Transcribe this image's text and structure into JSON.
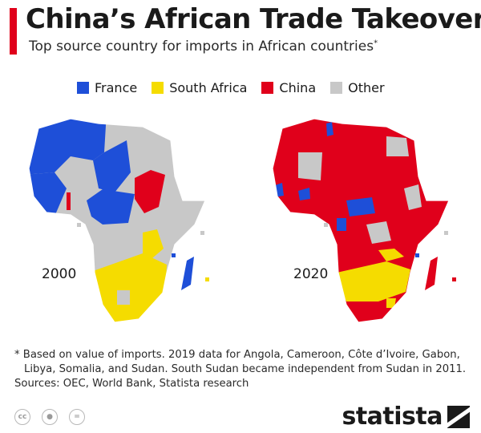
{
  "header": {
    "title": "China’s African Trade Takeover",
    "subtitle": "Top source country for imports in African countries",
    "subtitle_marker": "*"
  },
  "legend": [
    {
      "label": "France",
      "color": "#1e4fd8"
    },
    {
      "label": "South Africa",
      "color": "#f5dc00"
    },
    {
      "label": "China",
      "color": "#e0001b"
    },
    {
      "label": "Other",
      "color": "#c8c8c8"
    }
  ],
  "maps": [
    {
      "year": "2000"
    },
    {
      "year": "2020"
    }
  ],
  "footnote": {
    "line1": "* Based on value of imports. 2019 data for Angola, Cameroon, Côte d’Ivoire, Gabon,",
    "line2": "Libya, Somalia, and Sudan. South Sudan became independent from Sudan in 2011.",
    "sources": "Sources: OEC, World Bank, Statista research"
  },
  "license_icons": [
    "cc-icon",
    "by-icon",
    "nd-icon"
  ],
  "brand": {
    "name": "statista"
  }
}
